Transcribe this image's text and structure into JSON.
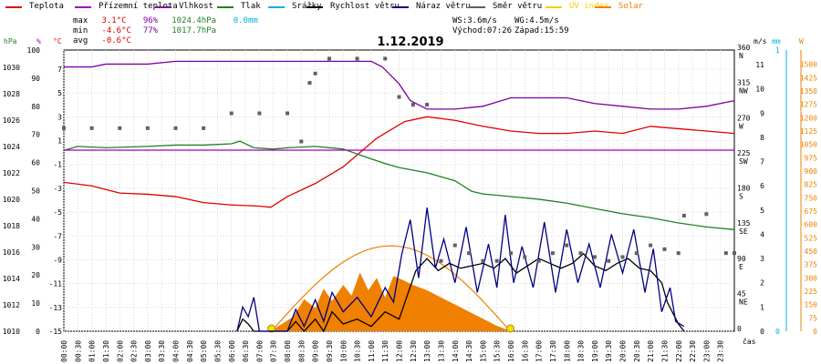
{
  "legend": [
    {
      "label": "Teplota",
      "color": "#e00000"
    },
    {
      "label": "Přízemní teplota",
      "color": "#a000c0"
    },
    {
      "label": "Vlhkost",
      "color": "#8000a0"
    },
    {
      "label": "Tlak",
      "color": "#208020"
    },
    {
      "label": "Srážky",
      "color": "#00b0e0"
    },
    {
      "label": "Rychlost větru",
      "color": "#000000"
    },
    {
      "label": "Náraz větru",
      "color": "#000080"
    },
    {
      "label": "Směr větru",
      "color": "#606060"
    },
    {
      "label": "UV index",
      "color": "#f0d000"
    },
    {
      "label": "Solar",
      "color": "#f08000"
    }
  ],
  "stats": {
    "max_label": "max",
    "max_temp": "3.1°C",
    "max_hum": "96%",
    "max_press": "1024.4hPa",
    "rain": "0.0mm",
    "min_label": "min",
    "min_temp": "-4.6°C",
    "min_hum": "77%",
    "min_press": "1017.7hPa",
    "avg_label": "avg",
    "avg_temp": "-0.6°C",
    "ws": "WS:3.6m/s",
    "wg": "WG:4.5m/s",
    "sunrise": "Východ:07:26",
    "sunset": "Západ:15:59"
  },
  "chart_data": {
    "type": "line",
    "title": "1.12.2019",
    "xlabel": "čas",
    "x_ticks": [
      "00:00",
      "00:30",
      "01:00",
      "01:30",
      "02:00",
      "02:30",
      "03:00",
      "03:30",
      "04:00",
      "04:30",
      "05:00",
      "05:30",
      "06:00",
      "06:30",
      "07:00",
      "07:30",
      "08:00",
      "08:30",
      "09:00",
      "09:30",
      "10:00",
      "10:30",
      "11:00",
      "11:30",
      "12:00",
      "12:30",
      "13:00",
      "13:30",
      "14:00",
      "14:30",
      "15:00",
      "15:30",
      "16:00",
      "16:30",
      "17:00",
      "17:30",
      "18:00",
      "18:30",
      "19:00",
      "19:30",
      "20:00",
      "20:30",
      "21:00",
      "21:30",
      "22:00",
      "22:30",
      "23:00",
      "23:30"
    ],
    "xlim": [
      0,
      24
    ],
    "axes": {
      "pressure": {
        "label": "hPa",
        "color": "#208020",
        "ticks": [
          1010,
          1012,
          1014,
          1016,
          1018,
          1020,
          1022,
          1024,
          1026,
          1028,
          1030
        ],
        "ylim": [
          1010,
          1031.3
        ]
      },
      "humidity": {
        "label": "%",
        "color": "#a000c0",
        "ticks": [
          0,
          10,
          20,
          30,
          40,
          50,
          60,
          70,
          80,
          90,
          100
        ],
        "ylim": [
          0,
          100
        ]
      },
      "temperature": {
        "label": "°C",
        "color": "#e00000",
        "ticks": [
          -15,
          -13,
          -11,
          -9,
          -7,
          -5,
          -3,
          -1,
          1,
          3,
          5,
          7
        ],
        "ylim": [
          -15,
          8.6
        ]
      },
      "direction": {
        "label": "",
        "ticks": [
          {
            "v": 0,
            "t": "0"
          },
          {
            "v": 45,
            "t": "45\nNE"
          },
          {
            "v": 90,
            "t": "90\nE"
          },
          {
            "v": 135,
            "t": "135\nSE"
          },
          {
            "v": 180,
            "t": "180\nS"
          },
          {
            "v": 225,
            "t": "225\nSW"
          },
          {
            "v": 270,
            "t": "270\nW"
          },
          {
            "v": 315,
            "t": "315\nNW"
          },
          {
            "v": 360,
            "t": "360\nN"
          }
        ],
        "ylim": [
          0,
          360
        ]
      },
      "wind": {
        "label": "m/s",
        "ticks": [
          0,
          1,
          2,
          3,
          4,
          5,
          6,
          7,
          8,
          9,
          10,
          11
        ],
        "ylim": [
          0,
          11.6
        ]
      },
      "rain": {
        "label": "mm",
        "color": "#00b0e0",
        "ticks": [
          0,
          1
        ],
        "ylim": [
          0,
          1
        ]
      },
      "solar": {
        "label": "W",
        "color": "#f08000",
        "ticks": [
          0,
          75,
          150,
          225,
          300,
          375,
          450,
          525,
          600,
          675,
          750,
          825,
          900,
          975,
          1050,
          1125,
          1200,
          1275,
          1350,
          1425,
          1500
        ],
        "ylim": [
          0,
          1580
        ]
      }
    },
    "series": [
      {
        "name": "Teplota",
        "axis": "temperature",
        "color": "#e00000",
        "points": [
          [
            0,
            -2.5
          ],
          [
            1,
            -2.8
          ],
          [
            2,
            -3.4
          ],
          [
            3,
            -3.5
          ],
          [
            4,
            -3.7
          ],
          [
            5,
            -4.2
          ],
          [
            6,
            -4.4
          ],
          [
            7,
            -4.5
          ],
          [
            7.4,
            -4.6
          ],
          [
            8,
            -3.7
          ],
          [
            9,
            -2.6
          ],
          [
            10,
            -1.2
          ],
          [
            10.7,
            0.2
          ],
          [
            11.2,
            1.2
          ],
          [
            11.7,
            1.9
          ],
          [
            12.2,
            2.6
          ],
          [
            13,
            3.0
          ],
          [
            14,
            2.7
          ],
          [
            15,
            2.2
          ],
          [
            16,
            1.8
          ],
          [
            17,
            1.6
          ],
          [
            18,
            1.6
          ],
          [
            19,
            1.8
          ],
          [
            20,
            1.6
          ],
          [
            21,
            2.2
          ],
          [
            22,
            2.0
          ],
          [
            23,
            1.8
          ],
          [
            24,
            1.6
          ]
        ]
      },
      {
        "name": "Vlhkost",
        "axis": "humidity",
        "color": "#8000a0",
        "points": [
          [
            0,
            94
          ],
          [
            1,
            94
          ],
          [
            1.5,
            95
          ],
          [
            3,
            95
          ],
          [
            4,
            96
          ],
          [
            5,
            96
          ],
          [
            8,
            96
          ],
          [
            11,
            96
          ],
          [
            11.4,
            94
          ],
          [
            12,
            88
          ],
          [
            12.4,
            82
          ],
          [
            13,
            79
          ],
          [
            14,
            79
          ],
          [
            15,
            80
          ],
          [
            16,
            83
          ],
          [
            18,
            83
          ],
          [
            19,
            81
          ],
          [
            20,
            80
          ],
          [
            21,
            79
          ],
          [
            22,
            79
          ],
          [
            23,
            80
          ],
          [
            24,
            82
          ]
        ]
      },
      {
        "name": "Tlak",
        "axis": "pressure",
        "color": "#208020",
        "points": [
          [
            0,
            1023.7
          ],
          [
            0.5,
            1024.0
          ],
          [
            1.5,
            1023.9
          ],
          [
            3,
            1024.0
          ],
          [
            4,
            1024.1
          ],
          [
            5,
            1024.1
          ],
          [
            6,
            1024.2
          ],
          [
            6.3,
            1024.4
          ],
          [
            6.8,
            1023.9
          ],
          [
            7.5,
            1023.8
          ],
          [
            8,
            1023.9
          ],
          [
            9,
            1024.0
          ],
          [
            10,
            1023.8
          ],
          [
            10.8,
            1023.2
          ],
          [
            11.5,
            1022.7
          ],
          [
            12,
            1022.4
          ],
          [
            13,
            1022.0
          ],
          [
            14,
            1021.4
          ],
          [
            14.6,
            1020.6
          ],
          [
            15,
            1020.4
          ],
          [
            16,
            1020.2
          ],
          [
            17,
            1020.0
          ],
          [
            18,
            1019.7
          ],
          [
            19,
            1019.3
          ],
          [
            20,
            1018.9
          ],
          [
            21,
            1018.6
          ],
          [
            22,
            1018.2
          ],
          [
            23,
            1017.9
          ],
          [
            24,
            1017.7
          ]
        ]
      },
      {
        "name": "Přízemní teplota",
        "axis": "temperature",
        "color": "#a000c0",
        "points": [
          [
            0,
            0.2
          ],
          [
            24,
            0.2
          ]
        ]
      },
      {
        "name": "Rychlost větru",
        "axis": "wind",
        "color": "#000000",
        "points": [
          [
            6.2,
            0
          ],
          [
            6.4,
            0.5
          ],
          [
            6.6,
            0.3
          ],
          [
            6.8,
            0
          ],
          [
            8,
            0
          ],
          [
            8.3,
            0.4
          ],
          [
            8.6,
            0
          ],
          [
            9,
            0.5
          ],
          [
            9.3,
            0
          ],
          [
            9.6,
            0.8
          ],
          [
            10,
            0.3
          ],
          [
            10.5,
            0.5
          ],
          [
            11,
            0.2
          ],
          [
            11.5,
            0.8
          ],
          [
            12,
            0.5
          ],
          [
            12.3,
            1.5
          ],
          [
            12.6,
            2.5
          ],
          [
            13,
            3.0
          ],
          [
            13.4,
            2.5
          ],
          [
            13.8,
            2.8
          ],
          [
            14.2,
            2.6
          ],
          [
            14.6,
            2.7
          ],
          [
            15,
            2.8
          ],
          [
            15.4,
            2.6
          ],
          [
            15.8,
            3.0
          ],
          [
            16.2,
            2.4
          ],
          [
            16.6,
            2.7
          ],
          [
            17,
            3.0
          ],
          [
            17.4,
            2.8
          ],
          [
            17.8,
            2.6
          ],
          [
            18.2,
            2.8
          ],
          [
            18.6,
            3.2
          ],
          [
            19,
            2.7
          ],
          [
            19.4,
            2.5
          ],
          [
            19.8,
            2.8
          ],
          [
            20.2,
            3.0
          ],
          [
            20.6,
            2.6
          ],
          [
            21,
            2.5
          ],
          [
            21.4,
            2.0
          ],
          [
            21.6,
            1.2
          ],
          [
            22,
            0.3
          ],
          [
            22.2,
            0
          ]
        ]
      },
      {
        "name": "Náraz větru",
        "axis": "wind",
        "color": "#000080",
        "points": [
          [
            6.2,
            0
          ],
          [
            6.4,
            1.0
          ],
          [
            6.6,
            0.6
          ],
          [
            6.8,
            1.4
          ],
          [
            7,
            0
          ],
          [
            8,
            0
          ],
          [
            8.3,
            0.9
          ],
          [
            8.6,
            0.2
          ],
          [
            9,
            1.3
          ],
          [
            9.3,
            0.4
          ],
          [
            9.6,
            1.6
          ],
          [
            10,
            0.8
          ],
          [
            10.5,
            1.4
          ],
          [
            11,
            0.6
          ],
          [
            11.5,
            1.8
          ],
          [
            11.8,
            1.2
          ],
          [
            12.1,
            3.2
          ],
          [
            12.4,
            4.6
          ],
          [
            12.7,
            2.2
          ],
          [
            13,
            5.1
          ],
          [
            13.3,
            2.6
          ],
          [
            13.6,
            3.8
          ],
          [
            14,
            2.0
          ],
          [
            14.4,
            4.3
          ],
          [
            14.8,
            1.6
          ],
          [
            15.2,
            3.6
          ],
          [
            15.5,
            1.8
          ],
          [
            15.8,
            4.8
          ],
          [
            16.1,
            2.0
          ],
          [
            16.4,
            3.5
          ],
          [
            16.8,
            1.8
          ],
          [
            17.2,
            4.5
          ],
          [
            17.6,
            1.6
          ],
          [
            18,
            4.2
          ],
          [
            18.4,
            2.0
          ],
          [
            18.8,
            3.6
          ],
          [
            19.2,
            1.8
          ],
          [
            19.6,
            4.0
          ],
          [
            20,
            2.4
          ],
          [
            20.4,
            4.2
          ],
          [
            20.8,
            1.6
          ],
          [
            21.1,
            3.4
          ],
          [
            21.4,
            0.8
          ],
          [
            21.7,
            1.8
          ],
          [
            21.9,
            0.4
          ],
          [
            22.2,
            0.2
          ]
        ]
      },
      {
        "name": "Směr větru",
        "axis": "direction",
        "color": "#606060",
        "style": "dots",
        "points": [
          [
            0,
            260
          ],
          [
            1,
            260
          ],
          [
            2,
            260
          ],
          [
            3,
            260
          ],
          [
            4,
            260
          ],
          [
            5,
            260
          ],
          [
            6,
            279
          ],
          [
            7,
            279
          ],
          [
            8,
            279
          ],
          [
            8.5,
            243
          ],
          [
            8.8,
            318
          ],
          [
            9,
            330
          ],
          [
            9.5,
            349
          ],
          [
            10.5,
            349
          ],
          [
            11.5,
            349
          ],
          [
            12,
            300
          ],
          [
            12.5,
            290
          ],
          [
            13,
            290
          ],
          [
            13.5,
            90
          ],
          [
            14,
            110
          ],
          [
            14.5,
            100
          ],
          [
            15,
            90
          ],
          [
            15.5,
            90
          ],
          [
            16,
            100
          ],
          [
            16.5,
            95
          ],
          [
            17,
            90
          ],
          [
            17.5,
            100
          ],
          [
            18,
            110
          ],
          [
            18.5,
            100
          ],
          [
            19,
            95
          ],
          [
            19.5,
            90
          ],
          [
            20,
            95
          ],
          [
            20.5,
            100
          ],
          [
            21,
            110
          ],
          [
            21.5,
            105
          ],
          [
            22,
            100
          ],
          [
            22.2,
            148
          ],
          [
            23,
            150
          ],
          [
            23.7,
            100
          ],
          [
            24,
            100
          ]
        ]
      },
      {
        "name": "Solar",
        "axis": "solar",
        "color": "#f08000",
        "style": "area",
        "points": [
          [
            7.4,
            0
          ],
          [
            7.8,
            40
          ],
          [
            8.2,
            80
          ],
          [
            8.6,
            180
          ],
          [
            9,
            130
          ],
          [
            9.3,
            240
          ],
          [
            9.6,
            170
          ],
          [
            10,
            260
          ],
          [
            10.3,
            200
          ],
          [
            10.6,
            330
          ],
          [
            10.9,
            230
          ],
          [
            11.2,
            300
          ],
          [
            11.5,
            190
          ],
          [
            11.8,
            310
          ],
          [
            12.1,
            290
          ],
          [
            12.5,
            260
          ],
          [
            13,
            230
          ],
          [
            13.5,
            190
          ],
          [
            14,
            150
          ],
          [
            14.5,
            110
          ],
          [
            15,
            70
          ],
          [
            15.5,
            30
          ],
          [
            16,
            0
          ]
        ]
      }
    ],
    "sun_curve": {
      "name": "UV index",
      "color": "#f08000",
      "rise": 7.43,
      "set": 15.98,
      "peak": 480
    }
  }
}
